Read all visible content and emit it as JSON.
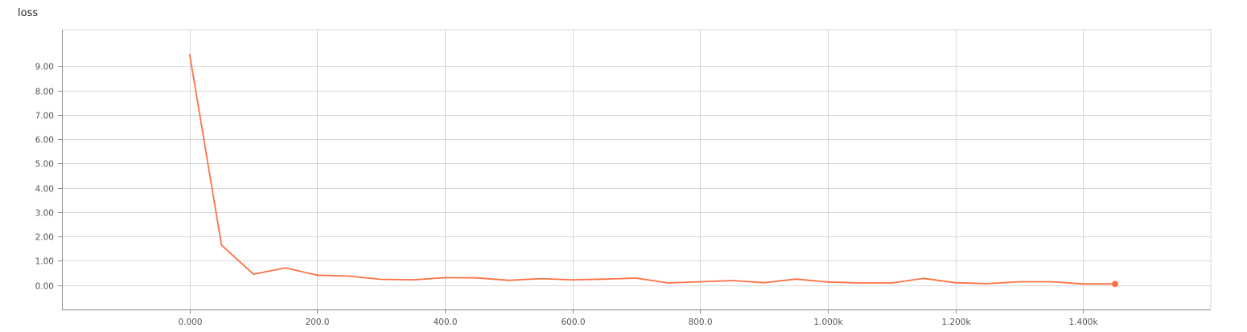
{
  "chart_data": {
    "type": "line",
    "title": "loss",
    "xlabel": "",
    "ylabel": "",
    "xlim": [
      -200,
      1600
    ],
    "ylim": [
      -1,
      10.5
    ],
    "grid": true,
    "x_ticks": [
      0,
      200,
      400,
      600,
      800,
      1000,
      1200,
      1400
    ],
    "x_tick_labels": [
      "0.000",
      "200.0",
      "400.0",
      "600.0",
      "800.0",
      "1.000k",
      "1.200k",
      "1.400k"
    ],
    "y_ticks": [
      0,
      1,
      2,
      3,
      4,
      5,
      6,
      7,
      8,
      9
    ],
    "y_tick_labels": [
      "0.00",
      "1.00",
      "2.00",
      "3.00",
      "4.00",
      "5.00",
      "6.00",
      "7.00",
      "8.00",
      "9.00"
    ],
    "series": [
      {
        "color": "#ff7043",
        "x": [
          0,
          50,
          100,
          150,
          200,
          250,
          300,
          350,
          400,
          450,
          500,
          550,
          600,
          650,
          700,
          750,
          800,
          850,
          900,
          950,
          1000,
          1050,
          1100,
          1150,
          1200,
          1250,
          1300,
          1350,
          1400,
          1450
        ],
        "y": [
          9.5,
          1.65,
          0.45,
          0.71,
          0.41,
          0.37,
          0.24,
          0.22,
          0.31,
          0.3,
          0.2,
          0.27,
          0.22,
          0.25,
          0.29,
          0.09,
          0.14,
          0.19,
          0.1,
          0.25,
          0.13,
          0.09,
          0.09,
          0.28,
          0.1,
          0.06,
          0.14,
          0.14,
          0.05,
          0.05
        ]
      }
    ]
  }
}
